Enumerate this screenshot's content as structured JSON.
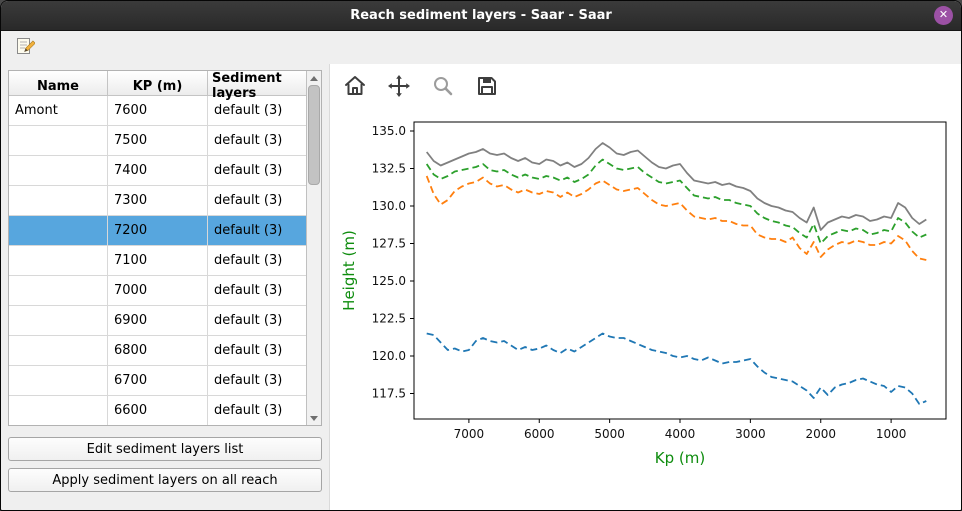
{
  "window": {
    "title": "Reach sediment layers - Saar - Saar",
    "close_glyph": "✕"
  },
  "ui_colors": {
    "row_selection": "#57a6de",
    "close_button": "#9c51a5",
    "titlebar": "#2e2e2e"
  },
  "main_toolbar": {
    "edit_icon": "edit-note-pencil-icon"
  },
  "sediment_table": {
    "headers": [
      "Name",
      "KP (m)",
      "Sediment layers"
    ],
    "rows": [
      {
        "name": "Amont",
        "kp": "7600",
        "layers": "default (3)",
        "selected": false
      },
      {
        "name": "",
        "kp": "7500",
        "layers": "default (3)",
        "selected": false
      },
      {
        "name": "",
        "kp": "7400",
        "layers": "default (3)",
        "selected": false
      },
      {
        "name": "",
        "kp": "7300",
        "layers": "default (3)",
        "selected": false
      },
      {
        "name": "",
        "kp": "7200",
        "layers": "default (3)",
        "selected": true
      },
      {
        "name": "",
        "kp": "7100",
        "layers": "default (3)",
        "selected": false
      },
      {
        "name": "",
        "kp": "7000",
        "layers": "default (3)",
        "selected": false
      },
      {
        "name": "",
        "kp": "6900",
        "layers": "default (3)",
        "selected": false
      },
      {
        "name": "",
        "kp": "6800",
        "layers": "default (3)",
        "selected": false
      },
      {
        "name": "",
        "kp": "6700",
        "layers": "default (3)",
        "selected": false
      },
      {
        "name": "",
        "kp": "6600",
        "layers": "default (3)",
        "selected": false
      }
    ]
  },
  "actions": {
    "edit_list": "Edit sediment layers list",
    "apply_all": "Apply sediment layers on all reach"
  },
  "plot_toolbar": {
    "items": [
      "home-icon",
      "pan-icon",
      "zoom-icon",
      "save-icon"
    ]
  },
  "chart_data": {
    "type": "line",
    "title": "",
    "xlabel": "Kp (m)",
    "ylabel": "Height (m)",
    "axis_label_color": "#0e8c0e",
    "x_axis_reversed": true,
    "xlim": [
      7780,
      220
    ],
    "ylim": [
      115.8,
      135.6
    ],
    "x_ticks": [
      7000,
      6000,
      5000,
      4000,
      3000,
      2000,
      1000
    ],
    "y_ticks": [
      117.5,
      120.0,
      122.5,
      125.0,
      127.5,
      130.0,
      132.5,
      135.0
    ],
    "grid": false,
    "legend": "none",
    "x": [
      7600,
      7500,
      7400,
      7300,
      7200,
      7100,
      7000,
      6900,
      6800,
      6700,
      6600,
      6500,
      6400,
      6300,
      6200,
      6100,
      6000,
      5900,
      5800,
      5700,
      5600,
      5500,
      5400,
      5300,
      5200,
      5100,
      5000,
      4900,
      4800,
      4700,
      4600,
      4500,
      4400,
      4300,
      4200,
      4100,
      4000,
      3900,
      3800,
      3700,
      3600,
      3500,
      3400,
      3300,
      3200,
      3100,
      3000,
      2900,
      2800,
      2700,
      2600,
      2500,
      2400,
      2300,
      2200,
      2100,
      2000,
      1900,
      1800,
      1700,
      1600,
      1500,
      1400,
      1300,
      1200,
      1100,
      1000,
      900,
      800,
      700,
      600,
      500
    ],
    "series": [
      {
        "name": "top-profile-gray-solid",
        "color": "#808080",
        "dash": "solid",
        "values": [
          133.6,
          133.0,
          132.7,
          132.9,
          133.1,
          133.3,
          133.5,
          133.6,
          133.8,
          133.5,
          133.4,
          133.5,
          133.2,
          133.0,
          133.2,
          132.9,
          132.8,
          133.1,
          133.0,
          132.7,
          132.9,
          132.6,
          132.8,
          133.2,
          133.8,
          134.2,
          133.9,
          133.5,
          133.4,
          133.6,
          133.7,
          133.3,
          132.9,
          132.6,
          132.5,
          132.7,
          132.8,
          132.2,
          131.7,
          131.6,
          131.5,
          131.6,
          131.4,
          131.5,
          131.3,
          131.2,
          131.0,
          130.5,
          130.2,
          130.0,
          129.9,
          129.7,
          129.6,
          129.2,
          128.9,
          129.9,
          128.4,
          128.9,
          129.1,
          129.3,
          129.2,
          129.4,
          129.3,
          129.0,
          129.1,
          129.3,
          129.2,
          130.2,
          129.9,
          129.2,
          128.8,
          129.1
        ]
      },
      {
        "name": "layer-green-dashed",
        "color": "#2ca02c",
        "dash": "dashed",
        "values": [
          132.8,
          132.1,
          131.8,
          132.0,
          132.3,
          132.4,
          132.5,
          132.6,
          132.8,
          132.4,
          132.3,
          132.4,
          132.1,
          131.9,
          132.1,
          131.9,
          131.8,
          132.0,
          131.9,
          131.7,
          131.9,
          131.6,
          131.8,
          132.1,
          132.7,
          133.1,
          132.8,
          132.5,
          132.4,
          132.5,
          132.6,
          132.2,
          131.9,
          131.6,
          131.5,
          131.6,
          131.7,
          131.2,
          130.7,
          130.6,
          130.5,
          130.6,
          130.4,
          130.4,
          130.2,
          130.1,
          130.0,
          129.5,
          129.2,
          129.0,
          128.9,
          128.7,
          128.6,
          128.2,
          127.9,
          128.8,
          127.5,
          128.0,
          128.2,
          128.4,
          128.3,
          128.5,
          128.4,
          128.1,
          128.2,
          128.4,
          128.3,
          129.2,
          128.9,
          128.3,
          127.9,
          128.1
        ]
      },
      {
        "name": "layer-orange-dashed",
        "color": "#ff7f0e",
        "dash": "dashed",
        "values": [
          132.0,
          130.8,
          130.1,
          130.4,
          131.0,
          131.3,
          131.5,
          131.6,
          131.9,
          131.5,
          131.3,
          131.4,
          131.1,
          130.9,
          131.1,
          130.9,
          130.8,
          131.0,
          130.9,
          130.6,
          130.9,
          130.6,
          130.8,
          131.1,
          131.5,
          131.7,
          131.4,
          131.1,
          131.0,
          131.1,
          131.2,
          130.8,
          130.4,
          130.1,
          130.0,
          130.1,
          130.2,
          129.7,
          129.3,
          129.2,
          129.1,
          129.2,
          129.0,
          129.0,
          128.8,
          128.7,
          128.7,
          128.1,
          127.9,
          127.8,
          127.8,
          127.6,
          127.9,
          127.2,
          126.8,
          127.6,
          126.6,
          127.1,
          127.4,
          127.6,
          127.5,
          127.7,
          127.6,
          127.4,
          127.4,
          127.6,
          127.5,
          128.0,
          127.7,
          127.0,
          126.5,
          126.4
        ]
      },
      {
        "name": "bottom-blue-dashed",
        "color": "#1f77b4",
        "dash": "dashed",
        "values": [
          121.5,
          121.4,
          120.9,
          120.4,
          120.5,
          120.3,
          120.4,
          121.0,
          121.2,
          121.0,
          120.9,
          121.0,
          120.7,
          120.4,
          120.6,
          120.4,
          120.5,
          120.7,
          120.4,
          120.2,
          120.5,
          120.3,
          120.6,
          120.9,
          121.2,
          121.5,
          121.3,
          121.2,
          121.2,
          121.0,
          120.8,
          120.6,
          120.4,
          120.3,
          120.2,
          120.0,
          119.9,
          120.0,
          119.8,
          119.7,
          119.9,
          119.7,
          119.5,
          119.6,
          119.6,
          119.7,
          119.8,
          119.3,
          118.9,
          118.6,
          118.5,
          118.4,
          118.3,
          118.0,
          117.7,
          117.2,
          117.9,
          117.4,
          117.9,
          118.1,
          118.2,
          118.4,
          118.5,
          118.3,
          118.1,
          118.0,
          117.6,
          118.0,
          117.9,
          117.5,
          116.8,
          117.0
        ]
      }
    ]
  }
}
